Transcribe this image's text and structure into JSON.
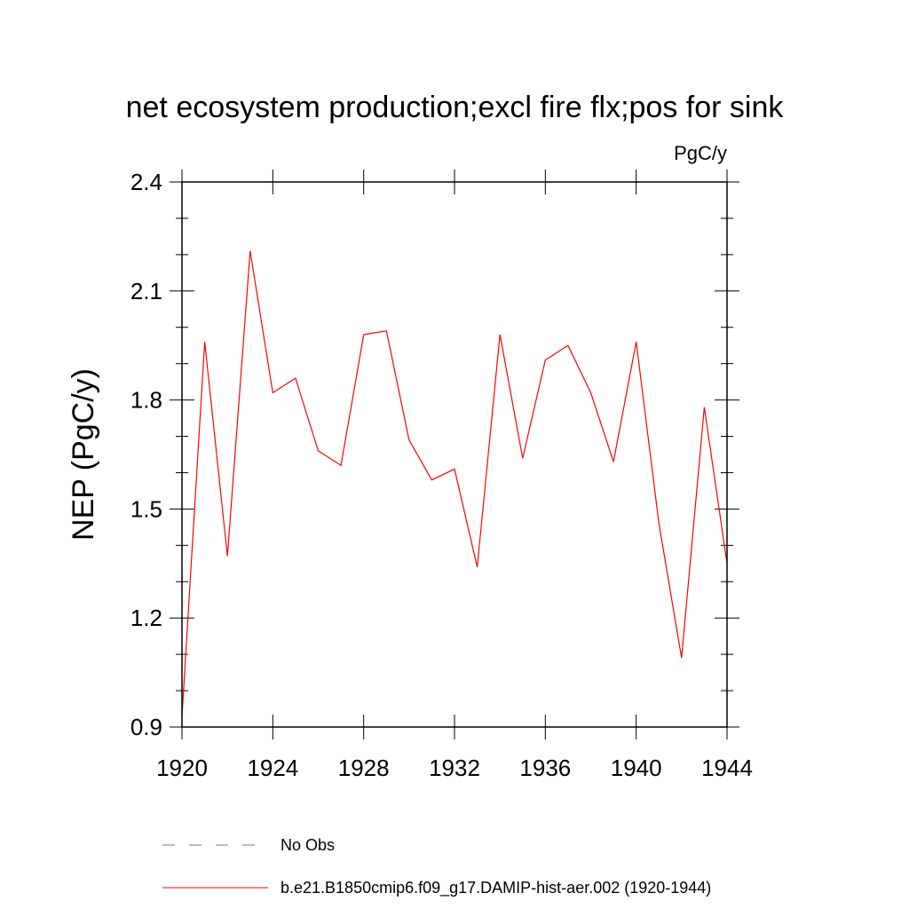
{
  "chart_data": {
    "type": "line",
    "title": "net ecosystem production;excl fire flx;pos for sink",
    "units_label": "PgC/y",
    "xlabel": "",
    "ylabel": "NEP  (PgC/y)",
    "xlim": [
      1920,
      1944
    ],
    "ylim": [
      0.9,
      2.4
    ],
    "xticks": [
      1920,
      1924,
      1928,
      1932,
      1936,
      1940,
      1944
    ],
    "yticks": [
      0.9,
      1.2,
      1.5,
      1.8,
      2.1,
      2.4
    ],
    "ytick_labels": [
      "0.9",
      "1.2",
      "1.5",
      "1.8",
      "2.1",
      "2.4"
    ],
    "grid": false,
    "legend_position": "bottom",
    "series": [
      {
        "name": "b.e21.B1850cmip6.f09_g17.DAMIP-hist-aer.002 (1920-1944)",
        "color": "#ff0000",
        "style": "solid",
        "x": [
          1920,
          1921,
          1922,
          1923,
          1924,
          1925,
          1926,
          1927,
          1928,
          1929,
          1930,
          1931,
          1932,
          1933,
          1934,
          1935,
          1936,
          1937,
          1938,
          1939,
          1940,
          1941,
          1942,
          1943,
          1944
        ],
        "y": [
          0.93,
          1.96,
          1.37,
          2.21,
          1.82,
          1.86,
          1.66,
          1.62,
          1.98,
          1.99,
          1.69,
          1.58,
          1.61,
          1.34,
          1.98,
          1.64,
          1.91,
          1.95,
          1.82,
          1.63,
          1.96,
          1.46,
          1.09,
          1.78,
          1.35
        ]
      }
    ],
    "legend": [
      {
        "label": "No Obs",
        "color": "#7070c0",
        "style": "dashed"
      },
      {
        "label": "b.e21.B1850cmip6.f09_g17.DAMIP-hist-aer.002 (1920-1944)",
        "color": "#ff0000",
        "style": "solid"
      }
    ]
  }
}
